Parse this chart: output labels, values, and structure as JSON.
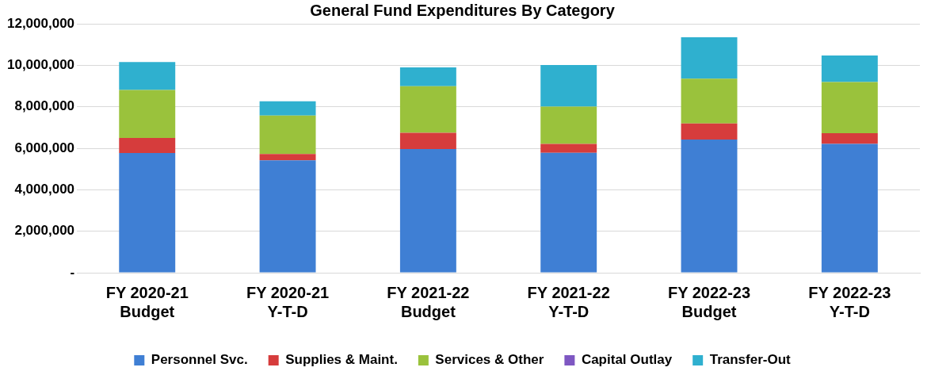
{
  "chart_data": {
    "type": "bar",
    "title": "General Fund Expenditures By Category",
    "categories": [
      "FY 2020-21\nBudget",
      "FY 2020-21\nY-T-D",
      "FY 2021-22\nBudget",
      "FY 2021-22\nY-T-D",
      "FY 2022-23\nBudget",
      "FY 2022-23\nY-T-D"
    ],
    "stacked": true,
    "series": [
      {
        "name": "Personnel Svc.",
        "color": "#3f7fd4",
        "values": [
          5770000,
          5420000,
          5960000,
          5780000,
          6420000,
          6210000
        ]
      },
      {
        "name": "Supplies & Maint.",
        "color": "#d63c3c",
        "values": [
          730000,
          300000,
          790000,
          430000,
          770000,
          520000
        ]
      },
      {
        "name": "Services & Other",
        "color": "#9ac23c",
        "values": [
          2310000,
          1860000,
          2240000,
          1800000,
          2160000,
          2460000
        ]
      },
      {
        "name": "Capital Outlay",
        "color": "#7e57c2",
        "values": [
          0,
          0,
          0,
          0,
          0,
          0
        ]
      },
      {
        "name": "Transfer-Out",
        "color": "#2fb0cf",
        "values": [
          1350000,
          680000,
          910000,
          2000000,
          2000000,
          1280000
        ]
      }
    ],
    "ylim": [
      0,
      12000000
    ],
    "yticks": [
      {
        "value": 0,
        "label": "-"
      },
      {
        "value": 2000000,
        "label": "2,000,000"
      },
      {
        "value": 4000000,
        "label": "4,000,000"
      },
      {
        "value": 6000000,
        "label": "6,000,000"
      },
      {
        "value": 8000000,
        "label": "8,000,000"
      },
      {
        "value": 10000000,
        "label": "10,000,000"
      },
      {
        "value": 12000000,
        "label": "12,000,000"
      }
    ],
    "grid": "y",
    "legend": "bottom"
  }
}
